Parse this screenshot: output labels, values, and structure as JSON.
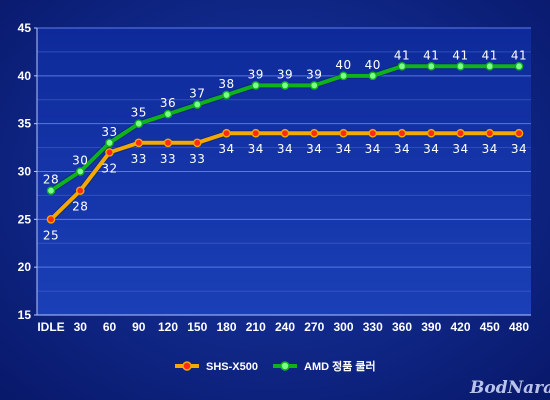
{
  "chart_data": {
    "type": "line",
    "categories": [
      "IDLE",
      "30",
      "60",
      "90",
      "120",
      "150",
      "180",
      "210",
      "240",
      "270",
      "300",
      "330",
      "360",
      "390",
      "420",
      "450",
      "480"
    ],
    "series": [
      {
        "name": "SHS-X500",
        "values": [
          25,
          28,
          32,
          33,
          33,
          33,
          34,
          34,
          34,
          34,
          34,
          34,
          34,
          34,
          34,
          34,
          34
        ],
        "color": "#f2a900",
        "marker_color": "#ff2a1a"
      },
      {
        "name": "AMD 정품 쿨러",
        "values": [
          28,
          30,
          33,
          35,
          36,
          37,
          38,
          39,
          39,
          39,
          40,
          40,
          41,
          41,
          41,
          41,
          41
        ],
        "color": "#10b21c",
        "marker_color": "#7cff8a"
      }
    ],
    "ylim": [
      15,
      45
    ],
    "yticks": [
      15,
      20,
      25,
      30,
      35,
      40,
      45
    ],
    "grid": true,
    "legend": "bottom-center",
    "title": "",
    "xlabel": "",
    "ylabel": ""
  },
  "watermark": "BodNara"
}
